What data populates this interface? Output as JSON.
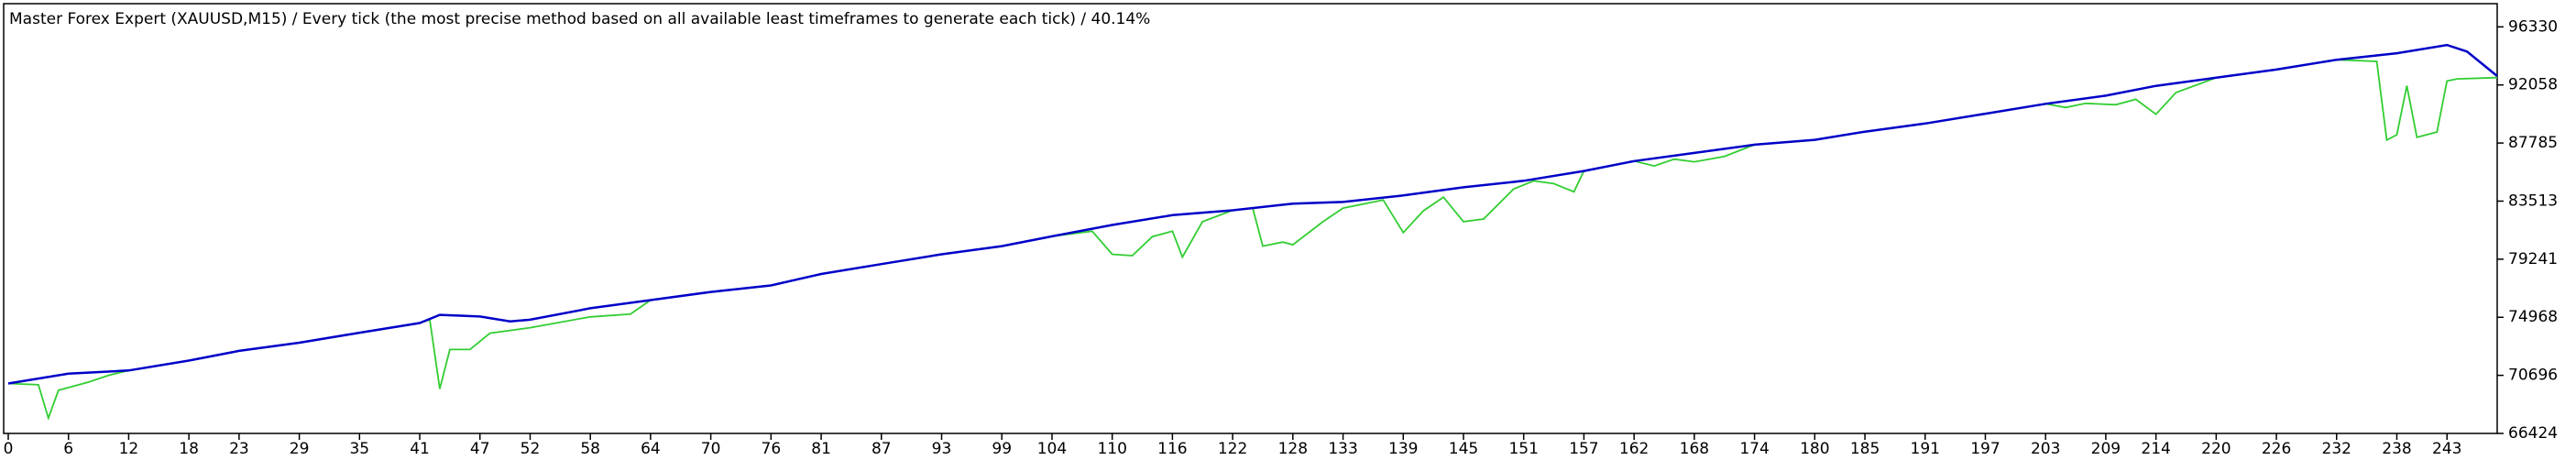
{
  "chart_data": {
    "type": "line",
    "title": "Master Forex Expert (XAUUSD,M15) / Every tick (the most precise method based on all available least timeframes to generate each tick) / 40.14%",
    "xlim": [
      0,
      248
    ],
    "xticks": [
      0,
      6,
      12,
      18,
      23,
      29,
      35,
      41,
      47,
      52,
      58,
      64,
      70,
      76,
      81,
      87,
      93,
      99,
      104,
      110,
      116,
      122,
      128,
      133,
      139,
      145,
      151,
      157,
      162,
      168,
      174,
      180,
      185,
      191,
      197,
      203,
      209,
      214,
      220,
      226,
      232,
      238,
      243
    ],
    "ylim": [
      66424,
      97700
    ],
    "yticks": [
      66424,
      70696,
      74968,
      79241,
      83513,
      87785,
      92058,
      96330
    ],
    "series": [
      {
        "color": "#32cd32",
        "x": [
          0,
          3,
          4,
          5,
          8,
          10,
          12,
          18,
          23,
          29,
          35,
          41,
          42,
          43,
          44,
          46,
          48,
          52,
          58,
          62,
          64,
          70,
          76,
          81,
          87,
          93,
          99,
          104,
          108,
          110,
          112,
          114,
          116,
          117,
          119,
          122,
          124,
          125,
          127,
          128,
          131,
          133,
          137,
          139,
          141,
          143,
          145,
          147,
          150,
          152,
          154,
          156,
          157,
          162,
          164,
          166,
          168,
          171,
          174,
          180,
          185,
          191,
          197,
          203,
          205,
          207,
          210,
          212,
          214,
          216,
          220,
          226,
          232,
          236,
          237,
          238,
          239,
          240,
          242,
          243,
          244,
          248
        ],
        "values": [
          70095,
          70000,
          67550,
          69600,
          70200,
          70700,
          71057,
          71780,
          72500,
          73100,
          73830,
          74546,
          74790,
          69700,
          72600,
          72600,
          73800,
          74200,
          75000,
          75200,
          76230,
          76830,
          77310,
          78150,
          78880,
          79600,
          80200,
          80920,
          81300,
          79600,
          79500,
          80900,
          81300,
          79400,
          82000,
          82840,
          83000,
          80200,
          80500,
          80300,
          82000,
          83000,
          83600,
          81200,
          82800,
          83800,
          82000,
          82200,
          84400,
          85000,
          84800,
          84200,
          85730,
          86460,
          86100,
          86600,
          86400,
          86800,
          87660,
          88020,
          88620,
          89220,
          89940,
          90670,
          90400,
          90700,
          90600,
          91000,
          89900,
          91500,
          92590,
          93190,
          93910,
          93790,
          88000,
          88400,
          92000,
          88200,
          88600,
          92350,
          92500,
          92600
        ]
      },
      {
        "color": "#0000c8",
        "x": [
          0,
          6,
          12,
          18,
          23,
          29,
          35,
          41,
          43,
          47,
          50,
          52,
          58,
          64,
          70,
          76,
          81,
          87,
          93,
          99,
          104,
          110,
          116,
          122,
          128,
          133,
          139,
          145,
          151,
          157,
          162,
          168,
          174,
          180,
          185,
          191,
          197,
          203,
          209,
          214,
          220,
          226,
          232,
          238,
          243,
          245,
          248
        ],
        "values": [
          70095,
          70816,
          71057,
          71780,
          72500,
          73100,
          73830,
          74546,
          75147,
          75027,
          74667,
          74787,
          75630,
          76230,
          76830,
          77310,
          78150,
          78880,
          79600,
          80200,
          80920,
          81760,
          82480,
          82840,
          83330,
          83450,
          83930,
          84530,
          85010,
          85730,
          86460,
          87060,
          87660,
          88020,
          88620,
          89220,
          89940,
          90670,
          91270,
          91990,
          92590,
          93190,
          93910,
          94390,
          95000,
          94510,
          92710
        ]
      }
    ]
  }
}
